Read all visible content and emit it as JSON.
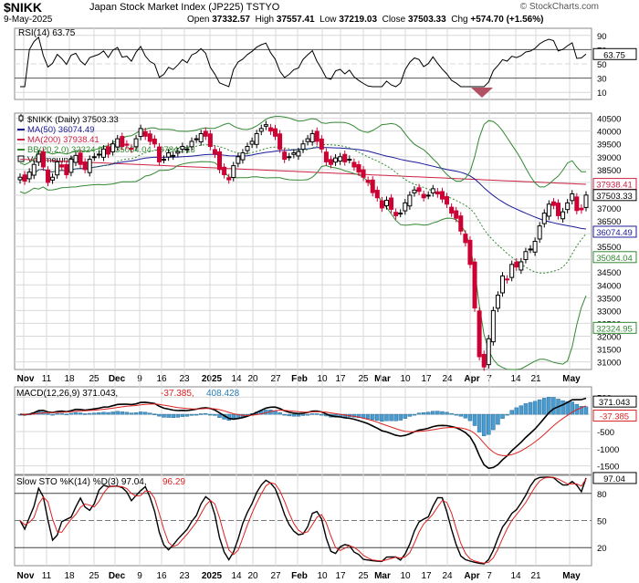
{
  "header": {
    "symbol": "$NIKK",
    "name": "Japan Stock Market Index (JP225)",
    "exchange": "TSTYO",
    "date": "9-May-2025",
    "open_label": "Open",
    "open": "37332.57",
    "high_label": "High",
    "high": "37557.41",
    "low_label": "Low",
    "low": "37219.03",
    "close_label": "Close",
    "close": "37503.33",
    "chg_label": "Chg",
    "chg": "+574.70 (+1.56%)",
    "brand": "© StockCharts.com"
  },
  "colors": {
    "up": "#000000",
    "down": "#cc0033",
    "ma50": "#1a1a99",
    "ma200": "#cc2244",
    "bb": "#338833",
    "macd_hist": "#4a9cd0",
    "grid": "#d8d8d8",
    "rsi_fill": "#b05060"
  },
  "rsi_panel": {
    "legend": "RSI(14) 63.75",
    "ticks": [
      "90",
      "70",
      "50",
      "30",
      "10"
    ],
    "value_tag": "63.75"
  },
  "price_panel": {
    "legend": [
      {
        "text": "$NIKK (Daily) 37503.33",
        "color": "#000000",
        "icon": "candle-icon"
      },
      {
        "text": "MA(50) 36074.49",
        "color": "#1a1a99",
        "icon": "line-icon"
      },
      {
        "text": "MA(200) 37938.41",
        "color": "#cc2244",
        "icon": "line-icon"
      },
      {
        "text": "BB(20,2.0) 32324.95 - 35084.04 - 37843.13",
        "color": "#338833",
        "icon": "line-icon"
      },
      {
        "text": "Volume undef",
        "color": "#000000",
        "icon": "checkbox-icon"
      }
    ],
    "ticks": [
      "40500",
      "40000",
      "39500",
      "39000",
      "38500",
      "38000",
      "37500",
      "37000",
      "36500",
      "36000",
      "35500",
      "35000",
      "34500",
      "34000",
      "33500",
      "33000",
      "32500",
      "32000",
      "31500",
      "31000"
    ],
    "tags": {
      "ma200": "37938.41",
      "close": "37503.33",
      "ma50": "36074.49",
      "bb_mid": "35084.04",
      "bb_low": "32324.95"
    }
  },
  "macd_panel": {
    "legend_main": "MACD(12,26,9) 371.043,",
    "legend_signal": "-37.385,",
    "legend_hist": "408.428",
    "ticks": [
      "500",
      "0",
      "-500",
      "-1000",
      "-1500"
    ],
    "tags": {
      "macd": "371.043",
      "signal": "-37.385"
    }
  },
  "sto_panel": {
    "legend_main": "Slow STO %K(14) %D(3) 97.04,",
    "legend_d": "96.29",
    "ticks": [
      "80",
      "50",
      "20"
    ],
    "value_tag": "97.04"
  },
  "x_axis_labels": [
    {
      "text": "Nov",
      "bold": true
    },
    {
      "text": "11"
    },
    {
      "text": "18"
    },
    {
      "text": "25"
    },
    {
      "text": "Dec",
      "bold": true
    },
    {
      "text": "9"
    },
    {
      "text": "16"
    },
    {
      "text": "23"
    },
    {
      "text": "2025",
      "bold": true
    },
    {
      "text": "14"
    },
    {
      "text": "20"
    },
    {
      "text": "27"
    },
    {
      "text": "Feb",
      "bold": true
    },
    {
      "text": "10"
    },
    {
      "text": "17"
    },
    {
      "text": "25"
    },
    {
      "text": "Mar",
      "bold": true
    },
    {
      "text": "10"
    },
    {
      "text": "17"
    },
    {
      "text": "24"
    },
    {
      "text": "Apr",
      "bold": true
    },
    {
      "text": "7"
    },
    {
      "text": "14"
    },
    {
      "text": "21"
    },
    {
      "text": "May",
      "bold": true
    }
  ],
  "chart_data": {
    "type": "candlestick",
    "title": "$NIKK Japan Stock Market Index (JP225) TSTYO",
    "x_categories": [
      "Nov",
      "11",
      "18",
      "25",
      "Dec",
      "9",
      "16",
      "23",
      "2025",
      "14",
      "20",
      "27",
      "Feb",
      "10",
      "17",
      "25",
      "Mar",
      "10",
      "17",
      "24",
      "Apr",
      "7",
      "14",
      "21",
      "May"
    ],
    "price": {
      "ylim": [
        30700,
        40700
      ],
      "close": [
        38200,
        38050,
        38400,
        38700,
        39100,
        38600,
        38000,
        38200,
        38800,
        38600,
        38300,
        38900,
        39050,
        38700,
        38500,
        38900,
        39000,
        39100,
        39300,
        39100,
        39500,
        39700,
        39400,
        39450,
        39300,
        39700,
        40100,
        39800,
        39600,
        39500,
        38800,
        38900,
        39150,
        39050,
        39200,
        39400,
        39300,
        39600,
        39700,
        39900,
        39800,
        39400,
        39100,
        38500,
        38300,
        38100,
        38650,
        39000,
        39150,
        39400,
        39600,
        39900,
        40100,
        40250,
        40000,
        39800,
        39300,
        38900,
        39000,
        39150,
        39200,
        39500,
        39700,
        39900,
        39600,
        39300,
        38800,
        38700,
        38950,
        39000,
        38800,
        38900,
        38600,
        38400,
        38200,
        38000,
        37600,
        37400,
        37000,
        37300,
        36950,
        36700,
        36800,
        37200,
        37500,
        37700,
        37650,
        37400,
        37500,
        37750,
        37550,
        37350,
        37150,
        36800,
        36600,
        36100,
        35650,
        34800,
        33100,
        31200,
        30800,
        31900,
        33000,
        33600,
        34350,
        34200,
        34800,
        34700,
        34900,
        35300,
        35400,
        35700,
        36300,
        36800,
        37150,
        37100,
        36700,
        36850,
        37200,
        37550,
        36900,
        36930,
        37503
      ],
      "ma50_last": 36074.49,
      "ma200_last": 37938.41,
      "bb_upper_last": 37843.13,
      "bb_mid_last": 35084.04,
      "bb_lower_last": 32324.95
    },
    "rsi": {
      "ylim": [
        0,
        100
      ],
      "levels": [
        70,
        50,
        30
      ],
      "last": 63.75
    },
    "macd": {
      "ylim": [
        -1750,
        800
      ],
      "last_macd": 371.043,
      "last_signal": -37.385,
      "last_hist": 408.428
    },
    "stochastic": {
      "ylim": [
        0,
        100
      ],
      "levels": [
        80,
        50,
        20
      ],
      "last_k": 97.04,
      "last_d": 96.29
    }
  }
}
